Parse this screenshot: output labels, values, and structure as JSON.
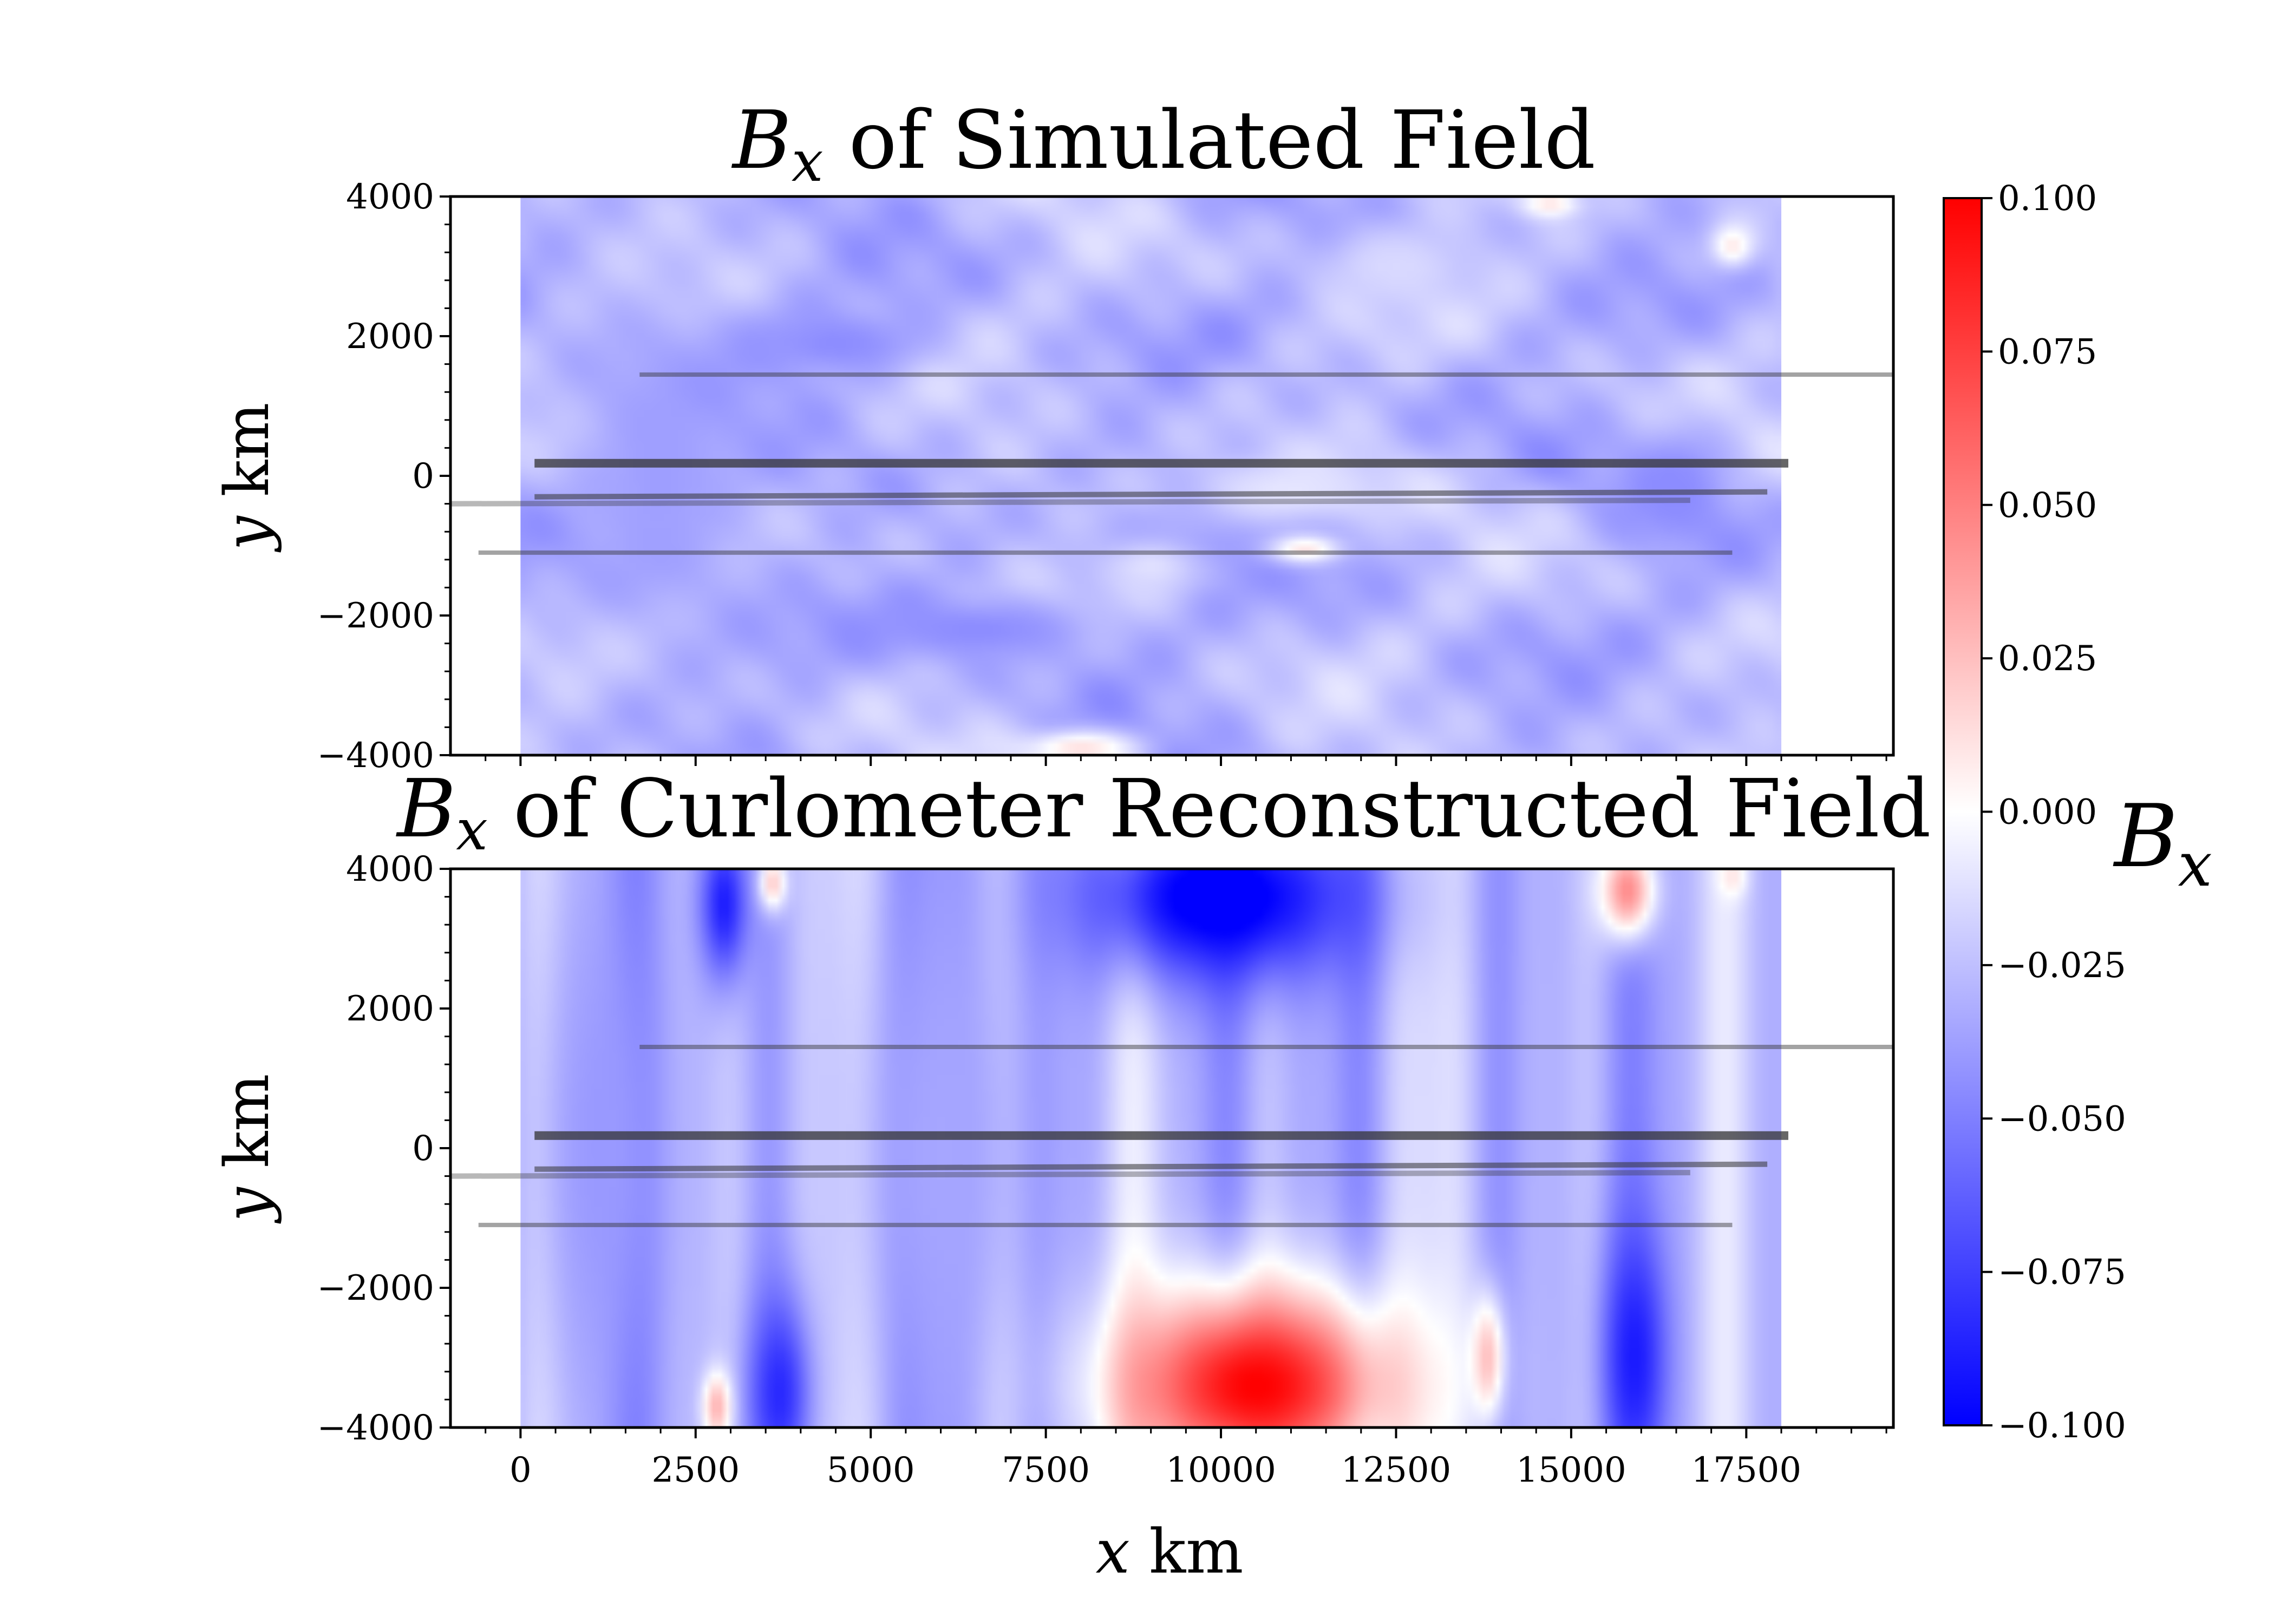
{
  "chart_data": [
    {
      "type": "heatmap",
      "title": {
        "main": "B",
        "sub": "x",
        "rest": " of Simulated Field"
      },
      "xlabel": {
        "var": "x",
        "unit": " km"
      },
      "ylabel": {
        "var": "y",
        "unit": " km"
      },
      "xlim": [
        -1000,
        19600
      ],
      "ylim": [
        -4000,
        4000
      ],
      "image_extent_x": [
        0,
        18000
      ],
      "image_extent_y": [
        -4000,
        4000
      ],
      "xticks": [
        0,
        2500,
        5000,
        7500,
        10000,
        12500,
        15000,
        17500
      ],
      "xtick_labels_shown": false,
      "yticks": [
        4000,
        2000,
        0,
        -2000,
        -4000
      ],
      "ytick_labels": [
        "4000",
        "2000",
        "0",
        "−2000",
        "−4000"
      ],
      "field_description": "weak negative Bx (about -0.02 to -0.05) everywhere, with small near-zero and faint positive patches",
      "patches": [
        {
          "x": 4500,
          "y": 1900,
          "sx": 1400,
          "sy": 500,
          "value": -0.045
        },
        {
          "x": 6500,
          "y": -2200,
          "sx": 1800,
          "sy": 500,
          "value": -0.045
        },
        {
          "x": 10000,
          "y": -1000,
          "sx": 2000,
          "sy": 500,
          "value": -0.04
        },
        {
          "x": 16500,
          "y": -200,
          "sx": 700,
          "sy": 900,
          "value": -0.045
        },
        {
          "x": 11000,
          "y": -200,
          "sx": 1500,
          "sy": 500,
          "value": -0.01
        },
        {
          "x": 9000,
          "y": -1300,
          "sx": 700,
          "sy": 400,
          "value": -0.012
        },
        {
          "x": 12500,
          "y": 3000,
          "sx": 1200,
          "sy": 600,
          "value": -0.015
        },
        {
          "x": 8000,
          "y": -3900,
          "sx": 800,
          "sy": 250,
          "value": 0.012
        },
        {
          "x": 14700,
          "y": 3900,
          "sx": 400,
          "sy": 200,
          "value": 0.01
        },
        {
          "x": 17300,
          "y": 3300,
          "sx": 300,
          "sy": 300,
          "value": 0.008
        },
        {
          "x": 11200,
          "y": -1050,
          "sx": 500,
          "sy": 200,
          "value": 0.01
        },
        {
          "x": 2000,
          "y": 0,
          "sx": 1500,
          "sy": 2500,
          "value": -0.038
        }
      ]
    },
    {
      "type": "heatmap",
      "title": {
        "main": "B",
        "sub": "x",
        "rest": " of Curlometer Reconstructed Field"
      },
      "xlabel": {
        "var": "x",
        "unit": " km"
      },
      "ylabel": {
        "var": "y",
        "unit": " km"
      },
      "xlim": [
        -1000,
        19600
      ],
      "ylim": [
        -4000,
        4000
      ],
      "image_extent_x": [
        0,
        18000
      ],
      "image_extent_y": [
        -4000,
        4000
      ],
      "xticks": [
        0,
        2500,
        5000,
        7500,
        10000,
        12500,
        15000,
        17500
      ],
      "xtick_labels": [
        "0",
        "2500",
        "5000",
        "7500",
        "10000",
        "12500",
        "15000",
        "17500"
      ],
      "yticks": [
        4000,
        2000,
        0,
        -2000,
        -4000
      ],
      "ytick_labels": [
        "4000",
        "2000",
        "0",
        "−2000",
        "−4000"
      ],
      "field_description": "vertical stripe structure; strong negative lobe near x=10000 at top, strong positive lobe near x=10500 at bottom",
      "patches": [
        {
          "x": 2900,
          "y": 3500,
          "sx": 350,
          "sy": 1100,
          "value": -0.09
        },
        {
          "x": 3700,
          "y": -3500,
          "sx": 450,
          "sy": 1400,
          "value": -0.085
        },
        {
          "x": 10000,
          "y": 3600,
          "sx": 1900,
          "sy": 1200,
          "value": -0.11
        },
        {
          "x": 15900,
          "y": -3000,
          "sx": 450,
          "sy": 1800,
          "value": -0.09
        },
        {
          "x": 1200,
          "y": 0,
          "sx": 1000,
          "sy": 4000,
          "value": -0.04
        },
        {
          "x": 6000,
          "y": 0,
          "sx": 1300,
          "sy": 4000,
          "value": -0.035
        },
        {
          "x": 10500,
          "y": -3400,
          "sx": 1900,
          "sy": 1400,
          "value": 0.1
        },
        {
          "x": 15800,
          "y": 3700,
          "sx": 400,
          "sy": 700,
          "value": 0.045
        },
        {
          "x": 3600,
          "y": 3800,
          "sx": 200,
          "sy": 400,
          "value": 0.02
        },
        {
          "x": 2800,
          "y": -3700,
          "sx": 200,
          "sy": 500,
          "value": 0.03
        },
        {
          "x": 13800,
          "y": -3000,
          "sx": 250,
          "sy": 900,
          "value": 0.025
        },
        {
          "x": 17300,
          "y": 3900,
          "sx": 200,
          "sy": 300,
          "value": 0.01
        }
      ]
    }
  ],
  "trajectories": [
    {
      "x": [
        1700,
        19600
      ],
      "y": [
        1450,
        1450
      ],
      "width": 8,
      "opacity": 0.45
    },
    {
      "x": [
        200,
        18100
      ],
      "y": [
        180,
        180
      ],
      "width": 16,
      "opacity": 0.75
    },
    {
      "x": [
        200,
        17800
      ],
      "y": [
        -300,
        -230
      ],
      "width": 10,
      "opacity": 0.55
    },
    {
      "x": [
        -1000,
        16700
      ],
      "y": [
        -400,
        -350
      ],
      "width": 10,
      "opacity": 0.35
    },
    {
      "x": [
        -600,
        17300
      ],
      "y": [
        -1100,
        -1100
      ],
      "width": 8,
      "opacity": 0.45
    }
  ],
  "colorbar": {
    "label": {
      "var": "B",
      "sub": "x"
    },
    "range": [
      -0.1,
      0.1
    ],
    "colors": [
      "#0000ff",
      "#ffffff",
      "#ff0000"
    ],
    "ticks": [
      0.1,
      0.075,
      0.05,
      0.025,
      0.0,
      -0.025,
      -0.05,
      -0.075,
      -0.1
    ],
    "tick_labels": [
      "0.100",
      "0.075",
      "0.050",
      "0.025",
      "0.000",
      "−0.025",
      "−0.050",
      "−0.075",
      "−0.100"
    ]
  }
}
